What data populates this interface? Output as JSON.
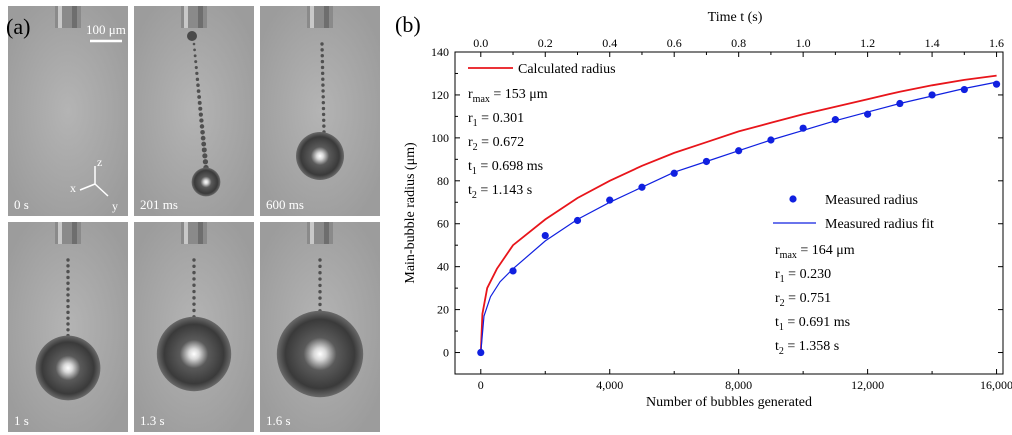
{
  "panel_a": {
    "label": "(a)",
    "scale_bar": "100 μm",
    "axes_labels": {
      "z": "z",
      "x": "x",
      "y": "y"
    },
    "frames": [
      {
        "time": "0 s",
        "bubble_radius_frac": 0.0,
        "chain": false
      },
      {
        "time": "201 ms",
        "bubble_radius_frac": 0.12,
        "chain": true
      },
      {
        "time": "600 ms",
        "bubble_radius_frac": 0.2,
        "chain": true
      },
      {
        "time": "1 s",
        "bubble_radius_frac": 0.27,
        "chain": true
      },
      {
        "time": "1.3 s",
        "bubble_radius_frac": 0.31,
        "chain": true
      },
      {
        "time": "1.6 s",
        "bubble_radius_frac": 0.36,
        "chain": true
      }
    ]
  },
  "panel_b": {
    "label": "(b)"
  },
  "chart_data": {
    "type": "scatter",
    "xlabel": "Number of bubbles generated",
    "ylabel": "Main-bubble radius (μm)",
    "top_xlabel": "Time  t (s)",
    "xlim": [
      -800,
      16200
    ],
    "ylim": [
      -10,
      140
    ],
    "top_xlim": [
      -0.08,
      1.62
    ],
    "x_ticks": [
      0,
      4000,
      8000,
      12000,
      16000
    ],
    "x_tick_labels": [
      "0",
      "4,000",
      "8,000",
      "12,000",
      "16,000"
    ],
    "y_ticks": [
      0,
      20,
      40,
      60,
      80,
      100,
      120,
      140
    ],
    "top_ticks": [
      0.0,
      0.2,
      0.4,
      0.6,
      0.8,
      1.0,
      1.2,
      1.4,
      1.6
    ],
    "top_tick_labels": [
      "0.0",
      "0.2",
      "0.4",
      "0.6",
      "0.8",
      "1.0",
      "1.2",
      "1.4",
      "1.6"
    ],
    "series": [
      {
        "name": "Calculated radius",
        "kind": "line",
        "color": "#e8151b",
        "x": [
          0,
          50,
          200,
          500,
          1000,
          2000,
          3000,
          4000,
          5000,
          6000,
          7000,
          8000,
          9000,
          10000,
          11000,
          12000,
          13000,
          14000,
          15000,
          16000
        ],
        "y": [
          0,
          18,
          30,
          39,
          50,
          62,
          72,
          80,
          87,
          93,
          98,
          103,
          107,
          111,
          114.5,
          118,
          121.5,
          124.5,
          127,
          129
        ]
      },
      {
        "name": "Measured radius",
        "kind": "scatter",
        "color": "#1020e0",
        "x": [
          0,
          1000,
          2000,
          3000,
          4000,
          5000,
          6000,
          7000,
          8000,
          9000,
          10000,
          11000,
          12000,
          13000,
          14000,
          15000,
          16000
        ],
        "y": [
          0,
          38,
          54.5,
          61.5,
          71,
          77,
          83.5,
          89,
          94,
          99,
          104.5,
          108.5,
          111,
          116,
          120,
          122.5,
          125
        ]
      },
      {
        "name": "Measured radius fit",
        "kind": "line",
        "color": "#1020e0",
        "x": [
          0,
          100,
          300,
          600,
          1000,
          2000,
          3000,
          4000,
          5000,
          6000,
          7000,
          8000,
          9000,
          10000,
          11000,
          12000,
          13000,
          14000,
          15000,
          16000
        ],
        "y": [
          0,
          17,
          26,
          33,
          39,
          52,
          62,
          70,
          77,
          84,
          89,
          94,
          99,
          103.5,
          108,
          112,
          116,
          119.5,
          123,
          126
        ]
      }
    ],
    "annotations": {
      "calc_params": [
        {
          "main": "r",
          "sub": "max",
          "rest": " = 153   μm"
        },
        {
          "main": "r",
          "sub": "1",
          "rest": " = 0.301"
        },
        {
          "main": "r",
          "sub": "2",
          "rest": " = 0.672"
        },
        {
          "main": "t",
          "sub": "1",
          "rest": " = 0.698 ms"
        },
        {
          "main": "t",
          "sub": "2",
          "rest": " = 1.143 s"
        }
      ],
      "meas_params": [
        {
          "main": "r",
          "sub": "max",
          "rest": " = 164   μm"
        },
        {
          "main": "r",
          "sub": "1",
          "rest": " = 0.230"
        },
        {
          "main": "r",
          "sub": "2",
          "rest": " = 0.751"
        },
        {
          "main": "t",
          "sub": "1",
          "rest": " = 0.691 ms"
        },
        {
          "main": "t",
          "sub": "2",
          "rest": " = 1.358 s"
        }
      ]
    }
  }
}
